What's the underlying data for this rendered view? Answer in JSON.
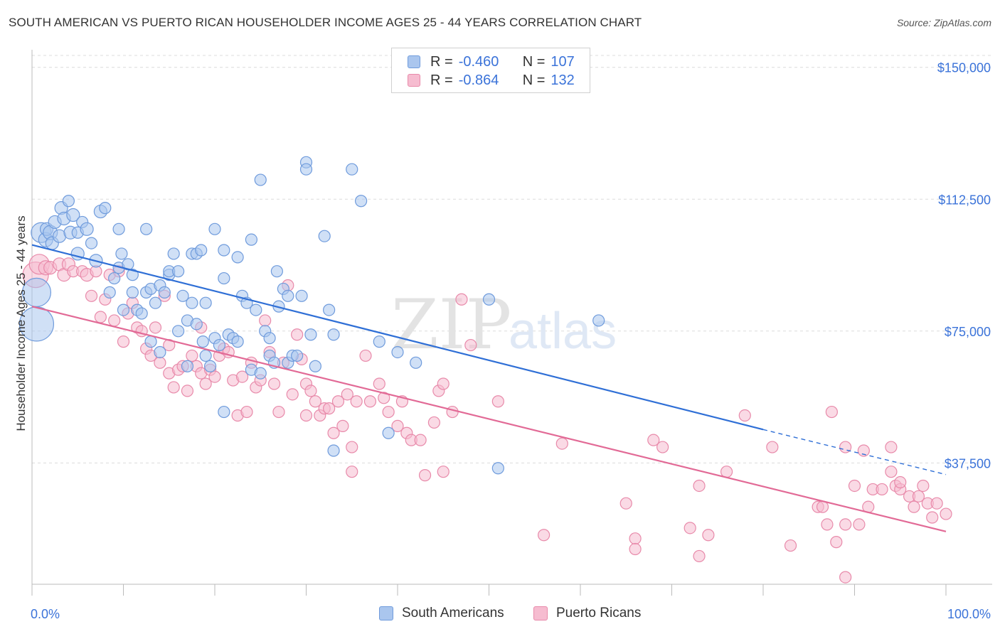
{
  "title": "SOUTH AMERICAN VS PUERTO RICAN HOUSEHOLDER INCOME AGES 25 - 44 YEARS CORRELATION CHART",
  "source": "Source: ZipAtlas.com",
  "watermark": {
    "zip": "ZIP",
    "atlas": "atlas"
  },
  "legend": {
    "r_label": "R =",
    "n_label": "N =",
    "rows": [
      {
        "r": "-0.460",
        "n": "107",
        "fill": "#aac6ee",
        "stroke": "#6f9bdc"
      },
      {
        "r": "-0.864",
        "n": "132",
        "fill": "#f6bcd0",
        "stroke": "#e88aaa"
      }
    ]
  },
  "bottom_legend": [
    "South Americans",
    "Puerto Ricans"
  ],
  "colors": {
    "blue_fill": "#aac6ee",
    "blue_stroke": "#6f9bdc",
    "blue_line": "#2f6fd6",
    "pink_fill": "#f6bcd0",
    "pink_stroke": "#e88aaa",
    "pink_line": "#e26a96",
    "tick_label": "#3b73d9",
    "grid": "#dcdcdc"
  },
  "chart_data": {
    "type": "scatter",
    "title": "SOUTH AMERICAN VS PUERTO RICAN HOUSEHOLDER INCOME AGES 25 - 44 YEARS CORRELATION CHART",
    "xlabel": "",
    "ylabel": "Householder Income Ages 25 - 44 years",
    "xlim": [
      0,
      100
    ],
    "ylim": [
      3000,
      155000
    ],
    "x_tick_labels": [
      "0.0%",
      "100.0%"
    ],
    "y_ticks": [
      37500,
      75000,
      112500,
      150000
    ],
    "y_tick_labels": [
      "$37,500",
      "$75,000",
      "$112,500",
      "$150,000"
    ],
    "grid": true,
    "legend_position": "top-center",
    "series": [
      {
        "name": "South Americans",
        "r": -0.46,
        "n": 107,
        "trend": {
          "x0": 0,
          "y0": 99500,
          "x1": 80,
          "y1": 47000,
          "dash_to_x": 100,
          "dash_to_y": 34200
        },
        "points": [
          [
            0.5,
            77000,
            24
          ],
          [
            0.5,
            86000,
            20
          ],
          [
            1,
            103000,
            14
          ],
          [
            1.5,
            101000,
            10
          ],
          [
            1.6,
            104000,
            9
          ],
          [
            2,
            103000,
            10
          ],
          [
            2.2,
            100000,
            9
          ],
          [
            2.5,
            106000,
            9
          ],
          [
            3,
            102000,
            9
          ],
          [
            3.2,
            110000,
            9
          ],
          [
            3.5,
            107000,
            9
          ],
          [
            4,
            112000,
            8
          ],
          [
            4.2,
            103000,
            9
          ],
          [
            4.5,
            108000,
            9
          ],
          [
            5,
            97000,
            9
          ],
          [
            5,
            103000,
            8
          ],
          [
            5.5,
            106000,
            8
          ],
          [
            6,
            104000,
            9
          ],
          [
            6.5,
            100000,
            8
          ],
          [
            7,
            95000,
            9
          ],
          [
            7.5,
            109000,
            9
          ],
          [
            8,
            110000,
            8
          ],
          [
            8.5,
            86000,
            8
          ],
          [
            9,
            90000,
            8
          ],
          [
            9.5,
            93000,
            8
          ],
          [
            9.5,
            104000,
            8
          ],
          [
            9.8,
            97000,
            8
          ],
          [
            10,
            81000,
            8
          ],
          [
            10.5,
            94000,
            8
          ],
          [
            11,
            91000,
            8
          ],
          [
            11,
            86000,
            8
          ],
          [
            11.5,
            81000,
            8
          ],
          [
            12,
            80000,
            8
          ],
          [
            12.5,
            104000,
            8
          ],
          [
            12.5,
            86000,
            8
          ],
          [
            13,
            87000,
            8
          ],
          [
            13,
            72000,
            8
          ],
          [
            13.5,
            83000,
            8
          ],
          [
            14,
            69000,
            8
          ],
          [
            14,
            88000,
            8
          ],
          [
            14.5,
            86000,
            8
          ],
          [
            15,
            91000,
            8
          ],
          [
            15,
            92000,
            8
          ],
          [
            15.5,
            97000,
            8
          ],
          [
            16,
            75000,
            8
          ],
          [
            16,
            92000,
            8
          ],
          [
            16.5,
            85000,
            8
          ],
          [
            17,
            78000,
            8
          ],
          [
            17,
            65000,
            8
          ],
          [
            17.5,
            83000,
            8
          ],
          [
            17.5,
            97000,
            8
          ],
          [
            18,
            77000,
            8
          ],
          [
            18,
            97000,
            8
          ],
          [
            18.5,
            98000,
            8
          ],
          [
            18.7,
            72000,
            8
          ],
          [
            19,
            68000,
            8
          ],
          [
            19,
            83000,
            8
          ],
          [
            19.5,
            65000,
            8
          ],
          [
            20,
            104000,
            8
          ],
          [
            20,
            73000,
            8
          ],
          [
            20.5,
            71000,
            8
          ],
          [
            21,
            52000,
            8
          ],
          [
            21,
            90000,
            8
          ],
          [
            21,
            98000,
            8
          ],
          [
            21.5,
            74000,
            8
          ],
          [
            22,
            73000,
            8
          ],
          [
            22.5,
            72000,
            8
          ],
          [
            22.5,
            96000,
            8
          ],
          [
            23,
            85000,
            8
          ],
          [
            23.5,
            83000,
            8
          ],
          [
            24,
            101000,
            8
          ],
          [
            24,
            64000,
            8
          ],
          [
            24.5,
            81000,
            8
          ],
          [
            25,
            118000,
            8
          ],
          [
            25,
            63000,
            8
          ],
          [
            25.5,
            75000,
            8
          ],
          [
            26,
            68000,
            8
          ],
          [
            26,
            73000,
            8
          ],
          [
            26.5,
            66000,
            8
          ],
          [
            26.8,
            92000,
            8
          ],
          [
            27,
            82000,
            8
          ],
          [
            27.5,
            87000,
            8
          ],
          [
            28,
            85000,
            8
          ],
          [
            28,
            66000,
            8
          ],
          [
            28.5,
            68000,
            8
          ],
          [
            29,
            68000,
            8
          ],
          [
            29.5,
            85000,
            8
          ],
          [
            30,
            123000,
            8
          ],
          [
            30,
            121000,
            8
          ],
          [
            30.5,
            74000,
            8
          ],
          [
            31,
            65000,
            8
          ],
          [
            32,
            102000,
            8
          ],
          [
            32.5,
            81000,
            8
          ],
          [
            33,
            74000,
            8
          ],
          [
            33,
            41000,
            8
          ],
          [
            35,
            121000,
            8
          ],
          [
            36,
            112000,
            8
          ],
          [
            38,
            72000,
            8
          ],
          [
            39,
            46000,
            8
          ],
          [
            40,
            69000,
            8
          ],
          [
            42,
            66000,
            8
          ],
          [
            50,
            84000,
            8
          ],
          [
            51,
            36000,
            8
          ],
          [
            62,
            78000,
            8
          ]
        ]
      },
      {
        "name": "Puerto Ricans",
        "r": -0.864,
        "n": 132,
        "trend": {
          "x0": 0,
          "y0": 82000,
          "x1": 100,
          "y1": 18000
        },
        "points": [
          [
            0.4,
            91000,
            18
          ],
          [
            0.8,
            94000,
            14
          ],
          [
            1.5,
            93000,
            10
          ],
          [
            2,
            93000,
            9
          ],
          [
            3,
            94000,
            9
          ],
          [
            3.5,
            91000,
            9
          ],
          [
            4,
            94000,
            9
          ],
          [
            4.5,
            92000,
            8
          ],
          [
            5.5,
            92000,
            8
          ],
          [
            6,
            91000,
            9
          ],
          [
            6.5,
            85000,
            8
          ],
          [
            7,
            92000,
            8
          ],
          [
            7.5,
            79000,
            8
          ],
          [
            8,
            84000,
            8
          ],
          [
            8.5,
            91000,
            8
          ],
          [
            9,
            78000,
            8
          ],
          [
            9.5,
            92000,
            8
          ],
          [
            10,
            72000,
            8
          ],
          [
            10.5,
            80000,
            8
          ],
          [
            11,
            83000,
            8
          ],
          [
            11.5,
            76000,
            8
          ],
          [
            12,
            75000,
            8
          ],
          [
            12.5,
            70000,
            8
          ],
          [
            13,
            68000,
            8
          ],
          [
            13.5,
            76000,
            8
          ],
          [
            14,
            66000,
            8
          ],
          [
            14.5,
            85000,
            8
          ],
          [
            15,
            71000,
            8
          ],
          [
            15,
            63000,
            8
          ],
          [
            15.5,
            59000,
            8
          ],
          [
            16,
            64000,
            8
          ],
          [
            16.5,
            65000,
            8
          ],
          [
            17,
            58000,
            8
          ],
          [
            17.5,
            68000,
            8
          ],
          [
            18,
            65000,
            8
          ],
          [
            18.5,
            63000,
            8
          ],
          [
            18.5,
            76000,
            8
          ],
          [
            19,
            60000,
            8
          ],
          [
            19.5,
            64000,
            8
          ],
          [
            20,
            62000,
            8
          ],
          [
            20.5,
            68000,
            8
          ],
          [
            21,
            70000,
            8
          ],
          [
            21.5,
            69000,
            8
          ],
          [
            22,
            61000,
            8
          ],
          [
            22.5,
            51000,
            8
          ],
          [
            23,
            62000,
            8
          ],
          [
            23.5,
            52000,
            8
          ],
          [
            24,
            66000,
            8
          ],
          [
            24.5,
            59000,
            8
          ],
          [
            25,
            61000,
            8
          ],
          [
            25.5,
            78000,
            8
          ],
          [
            26,
            69000,
            8
          ],
          [
            26.5,
            60000,
            8
          ],
          [
            27,
            52000,
            8
          ],
          [
            27.5,
            66000,
            8
          ],
          [
            28,
            88000,
            8
          ],
          [
            28.5,
            57000,
            8
          ],
          [
            29,
            74000,
            8
          ],
          [
            29.5,
            67000,
            8
          ],
          [
            30,
            60000,
            8
          ],
          [
            30,
            51000,
            8
          ],
          [
            30.5,
            58000,
            8
          ],
          [
            31,
            55000,
            8
          ],
          [
            31.5,
            51000,
            8
          ],
          [
            32,
            53000,
            8
          ],
          [
            32.5,
            53000,
            8
          ],
          [
            33,
            46000,
            8
          ],
          [
            33.5,
            55000,
            8
          ],
          [
            34,
            48000,
            8
          ],
          [
            34.5,
            57000,
            8
          ],
          [
            35,
            42000,
            8
          ],
          [
            35,
            35000,
            8
          ],
          [
            35.5,
            55000,
            8
          ],
          [
            36.5,
            68000,
            8
          ],
          [
            37,
            55000,
            8
          ],
          [
            38,
            60000,
            8
          ],
          [
            38.5,
            56000,
            8
          ],
          [
            39,
            52000,
            8
          ],
          [
            40,
            48000,
            8
          ],
          [
            40.5,
            55000,
            8
          ],
          [
            41,
            46000,
            8
          ],
          [
            41.5,
            44000,
            8
          ],
          [
            42.5,
            44000,
            8
          ],
          [
            43,
            34000,
            8
          ],
          [
            44,
            49000,
            8
          ],
          [
            44.5,
            58000,
            8
          ],
          [
            45,
            60000,
            8
          ],
          [
            45,
            35000,
            8
          ],
          [
            46,
            52000,
            8
          ],
          [
            47,
            84000,
            8
          ],
          [
            48,
            71000,
            8
          ],
          [
            51,
            55000,
            8
          ],
          [
            56,
            17000,
            8
          ],
          [
            58,
            43000,
            8
          ],
          [
            65,
            26000,
            8
          ],
          [
            66,
            16000,
            8
          ],
          [
            66,
            13000,
            8
          ],
          [
            68,
            44000,
            8
          ],
          [
            69,
            42000,
            8
          ],
          [
            72,
            19000,
            8
          ],
          [
            73,
            31000,
            8
          ],
          [
            73,
            11000,
            8
          ],
          [
            74,
            17000,
            8
          ],
          [
            76,
            35000,
            8
          ],
          [
            78,
            51000,
            8
          ],
          [
            81,
            42000,
            8
          ],
          [
            83,
            14000,
            8
          ],
          [
            86,
            25000,
            8
          ],
          [
            86.5,
            25000,
            8
          ],
          [
            87,
            20000,
            8
          ],
          [
            87.5,
            52000,
            8
          ],
          [
            88,
            15000,
            8
          ],
          [
            89,
            42000,
            8
          ],
          [
            89,
            20000,
            8
          ],
          [
            90,
            31000,
            8
          ],
          [
            90.5,
            20000,
            8
          ],
          [
            91,
            41000,
            8
          ],
          [
            91.5,
            25000,
            8
          ],
          [
            92,
            30000,
            8
          ],
          [
            93,
            30000,
            8
          ],
          [
            94,
            42000,
            8
          ],
          [
            94,
            35000,
            8
          ],
          [
            94.5,
            31000,
            8
          ],
          [
            95,
            30000,
            8
          ],
          [
            95,
            32000,
            8
          ],
          [
            96,
            28000,
            8
          ],
          [
            96.5,
            25000,
            8
          ],
          [
            97,
            28000,
            8
          ],
          [
            97.5,
            31000,
            8
          ],
          [
            98,
            26000,
            8
          ],
          [
            98.5,
            22000,
            8
          ],
          [
            99,
            26000,
            8
          ],
          [
            100,
            23000,
            8
          ]
        ]
      }
    ]
  },
  "extra_pink": [
    [
      89,
      5000,
      8
    ]
  ]
}
